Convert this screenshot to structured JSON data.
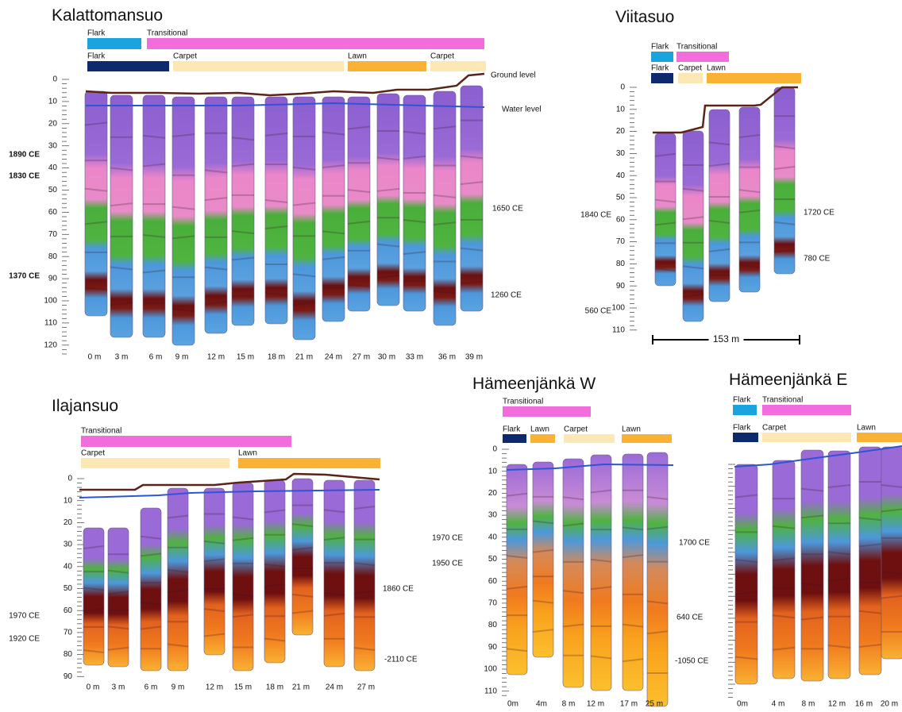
{
  "panels": [
    {
      "title": "Kalattomansuo",
      "zones": [
        {
          "label": "Flark",
          "color": "#1aa3dd"
        },
        {
          "label": "Transitional",
          "color": "#f26ddc"
        }
      ],
      "habitats": [
        {
          "label": "Flark",
          "color": "#0d2a6e"
        },
        {
          "label": "Carpet",
          "color": "#fbe8b4"
        },
        {
          "label": "Lawn",
          "color": "#f9b233"
        },
        {
          "label": "Carpet",
          "color": "#fbe8b4"
        }
      ],
      "depth_ticks": [
        0,
        10,
        20,
        30,
        40,
        50,
        60,
        70,
        80,
        90,
        100,
        110,
        120
      ],
      "dates_left": [
        "1890 CE",
        "1830 CE",
        "1370 CE"
      ],
      "dates_right": [
        "1650 CE",
        "1260 CE"
      ],
      "positions": [
        "0 m",
        "3 m",
        "6 m",
        "9 m",
        "12 m",
        "15 m",
        "18 m",
        "21 m",
        "24 m",
        "27 m",
        "30 m",
        "33 m",
        "36 m",
        "39 m"
      ],
      "ground_label": "Ground level",
      "water_label": "Water level"
    },
    {
      "title": "Viitasuo",
      "zones": [
        {
          "label": "Flark",
          "color": "#1aa3dd"
        },
        {
          "label": "Transitional",
          "color": "#f26ddc"
        }
      ],
      "habitats": [
        {
          "label": "Flark",
          "color": "#0d2a6e"
        },
        {
          "label": "Carpet",
          "color": "#fbe8b4"
        },
        {
          "label": "Lawn",
          "color": "#f9b233"
        }
      ],
      "depth_ticks": [
        0,
        10,
        20,
        30,
        40,
        50,
        60,
        70,
        80,
        90,
        100,
        110
      ],
      "dates_left": [
        "1840 CE",
        "560 CE"
      ],
      "dates_right": [
        "1720 CE",
        "780 CE"
      ],
      "positions": [],
      "scale_label": "153 m"
    },
    {
      "title": "Ilajansuo",
      "zones": [
        {
          "label": "Transitional",
          "color": "#f26ddc"
        }
      ],
      "habitats": [
        {
          "label": "Carpet",
          "color": "#fbe8b4"
        },
        {
          "label": "Lawn",
          "color": "#f9b233"
        }
      ],
      "depth_ticks": [
        0,
        10,
        20,
        30,
        40,
        50,
        60,
        70,
        80,
        90
      ],
      "dates_left": [
        "1970 CE",
        "1920 CE"
      ],
      "dates_right": [
        "1860 CE",
        "-2110 CE"
      ],
      "positions": [
        "0 m",
        "3 m",
        "6 m",
        "9 m",
        "12 m",
        "15 m",
        "18 m",
        "21 m",
        "24 m",
        "27 m"
      ]
    },
    {
      "title": "Hämeenjänkä W",
      "zones": [
        {
          "label": "Transitional",
          "color": "#f26ddc"
        }
      ],
      "habitats": [
        {
          "label": "Flark",
          "color": "#0d2a6e"
        },
        {
          "label": "Lawn",
          "color": "#f9b233"
        },
        {
          "label": "Carpet",
          "color": "#fbe8b4"
        },
        {
          "label": "Lawn",
          "color": "#f9b233"
        }
      ],
      "depth_ticks": [
        0,
        10,
        20,
        30,
        40,
        50,
        60,
        70,
        80,
        90,
        100,
        110
      ],
      "dates_left": [
        "1970 CE",
        "1950 CE"
      ],
      "dates_right": [
        "1700 CE",
        "640 CE",
        "-1050 CE"
      ],
      "positions": [
        "0m",
        "4m",
        "8 m",
        "12 m",
        "17 m",
        "25 m"
      ]
    },
    {
      "title": "Hämeenjänkä E",
      "zones": [
        {
          "label": "Flark",
          "color": "#1aa3dd"
        },
        {
          "label": "Transitional",
          "color": "#f26ddc"
        }
      ],
      "habitats": [
        {
          "label": "Flark",
          "color": "#0d2a6e"
        },
        {
          "label": "Carpet",
          "color": "#fbe8b4"
        },
        {
          "label": "Lawn",
          "color": "#f9b233"
        }
      ],
      "depth_ticks": [],
      "dates_left": [],
      "dates_right": [],
      "positions": [
        "0m",
        "4 m",
        "8 m",
        "12 m",
        "16 m",
        "20 m"
      ]
    }
  ]
}
